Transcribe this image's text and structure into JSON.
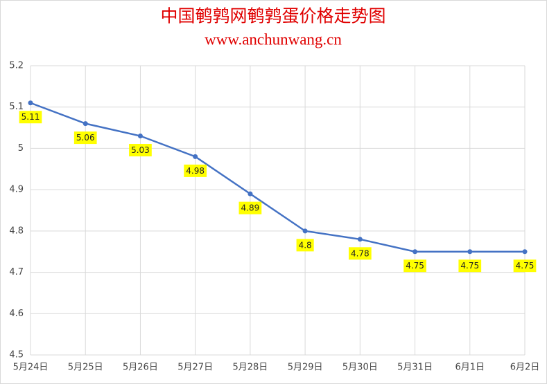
{
  "chart_data": {
    "type": "line",
    "title": "中国鹌鹑网鹌鹑蛋价格走势图",
    "subtitle": "www.anchunwang.cn",
    "categories": [
      "5月24日",
      "5月25日",
      "5月26日",
      "5月27日",
      "5月28日",
      "5月29日",
      "5月30日",
      "5月31日",
      "6月1日",
      "6月2日"
    ],
    "values": [
      5.11,
      5.06,
      5.03,
      4.98,
      4.89,
      4.8,
      4.78,
      4.75,
      4.75,
      4.75
    ],
    "color": "#4472c4",
    "label_background": "#ffff00",
    "ylim": [
      4.5,
      5.2
    ],
    "yticks": [
      4.5,
      4.6,
      4.7,
      4.8,
      4.9,
      5,
      5.1,
      5.2
    ],
    "grid": true
  }
}
